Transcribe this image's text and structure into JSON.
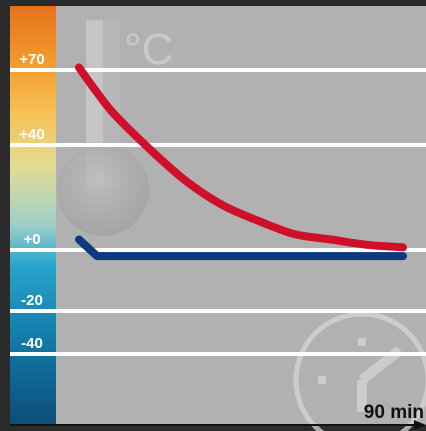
{
  "chart_data": {
    "type": "line",
    "unit_label": "°C",
    "y_ticks": [
      {
        "value": 70,
        "label": "+70"
      },
      {
        "value": 40,
        "label": "+40"
      },
      {
        "value": 0,
        "label": "+0"
      },
      {
        "value": -20,
        "label": "-20"
      },
      {
        "value": -40,
        "label": "-40"
      }
    ],
    "x_label": "90 min",
    "xlim": [
      0,
      90
    ],
    "grid": true,
    "series": [
      {
        "color": "#d0102a",
        "x": [
          0,
          5,
          10,
          20,
          30,
          40,
          50,
          60,
          70,
          80,
          90
        ],
        "y": [
          71,
          61,
          52,
          38,
          26,
          17,
          11,
          6,
          4,
          2,
          1
        ]
      },
      {
        "color": "#0b3a7e",
        "x": [
          0,
          5,
          90
        ],
        "y": [
          4,
          -2,
          -2
        ]
      }
    ],
    "colors": {
      "background": "#b1b1b1",
      "gridline": "#ffffff",
      "scale_top": "#e8711c",
      "scale_bottom": "#0c5f8c"
    }
  }
}
